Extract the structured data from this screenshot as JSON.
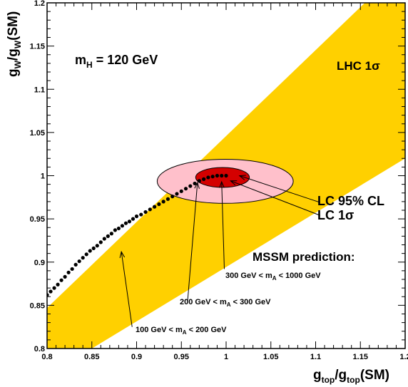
{
  "chart_data": {
    "type": "scatter",
    "x_range": [
      0.8,
      1.2
    ],
    "y_range": [
      0.8,
      1.2
    ],
    "x_ticks": [
      0.8,
      0.85,
      0.9,
      0.95,
      1,
      1.05,
      1.1,
      1.15,
      1.2
    ],
    "x_tick_labels": [
      "0.8",
      "0.85",
      "0.9",
      "0.95",
      "1",
      "1.05",
      "1.1",
      "1.15",
      "1.2"
    ],
    "y_ticks": [
      0.8,
      0.85,
      0.9,
      0.95,
      1,
      1.05,
      1.1,
      1.15,
      1.2
    ],
    "y_tick_labels": [
      "0.8",
      "0.85",
      "0.9",
      "0.95",
      "1",
      "1.05",
      "1.1",
      "1.15",
      "1.2"
    ],
    "xlabel": {
      "main": "g",
      "sub": "top",
      "mid": "/g",
      "sub2": "top",
      "tail": "(SM)"
    },
    "ylabel": {
      "main": "g",
      "sub": "W",
      "mid": "/g",
      "sub2": "W",
      "tail": "(SM)"
    },
    "lhc_band": {
      "label": "LHC 1σ",
      "color": "#FFD000",
      "polygon": [
        [
          0.85,
          0.8
        ],
        [
          1.2,
          1.02
        ],
        [
          1.2,
          1.2
        ],
        [
          1.155,
          1.2
        ],
        [
          0.8,
          0.847
        ],
        [
          0.8,
          0.8
        ]
      ]
    },
    "lc_95_ellipse": {
      "label": "LC 95% CL",
      "color": "#FFC0CB",
      "center": [
        0.999,
        0.9935
      ],
      "radius": [
        0.076,
        0.0255
      ]
    },
    "lc_1sigma_ellipse": {
      "label": "LC 1σ",
      "color": "#D40000",
      "center": [
        0.996,
        0.998
      ],
      "radius": [
        0.03,
        0.0115
      ]
    },
    "mssm_points": [
      [
        0.8,
        0.862
      ],
      [
        0.804,
        0.866
      ],
      [
        0.808,
        0.87
      ],
      [
        0.812,
        0.874
      ],
      [
        0.816,
        0.879
      ],
      [
        0.82,
        0.883
      ],
      [
        0.824,
        0.888
      ],
      [
        0.828,
        0.892
      ],
      [
        0.832,
        0.897
      ],
      [
        0.836,
        0.901
      ],
      [
        0.84,
        0.905
      ],
      [
        0.844,
        0.909
      ],
      [
        0.848,
        0.913
      ],
      [
        0.852,
        0.916
      ],
      [
        0.856,
        0.919
      ],
      [
        0.86,
        0.923
      ],
      [
        0.864,
        0.927
      ],
      [
        0.868,
        0.93
      ],
      [
        0.872,
        0.933
      ],
      [
        0.876,
        0.937
      ],
      [
        0.88,
        0.939
      ],
      [
        0.884,
        0.942
      ],
      [
        0.888,
        0.945
      ],
      [
        0.892,
        0.947
      ],
      [
        0.896,
        0.95
      ],
      [
        0.9,
        0.953
      ],
      [
        0.905,
        0.955
      ],
      [
        0.91,
        0.958
      ],
      [
        0.915,
        0.961
      ],
      [
        0.92,
        0.964
      ],
      [
        0.925,
        0.967
      ],
      [
        0.93,
        0.97
      ],
      [
        0.935,
        0.973
      ],
      [
        0.94,
        0.976
      ],
      [
        0.945,
        0.979
      ],
      [
        0.95,
        0.982
      ],
      [
        0.955,
        0.985
      ],
      [
        0.96,
        0.988
      ],
      [
        0.965,
        0.991
      ],
      [
        0.97,
        0.994
      ],
      [
        0.975,
        0.996
      ],
      [
        0.98,
        0.998
      ],
      [
        0.985,
        0.999
      ],
      [
        0.99,
        1.0
      ],
      [
        0.995,
        1.0
      ],
      [
        1.0,
        1.0
      ]
    ],
    "annotations": {
      "mh": {
        "main": "m",
        "sub": "H",
        "tail": " = 120 GeV"
      },
      "lhc": "LHC 1σ",
      "lc95": "LC 95% CL",
      "lc1s": "LC 1σ",
      "mssm": "MSSM prediction:",
      "r1": {
        "head": "100 GeV < m",
        "sub": "A",
        "tail": " < 200 GeV"
      },
      "r2": {
        "head": "200 GeV < m",
        "sub": "A",
        "tail": " < 300 GeV"
      },
      "r3": {
        "head": "300 GeV < m",
        "sub": "A",
        "tail": " < 1000 GeV"
      }
    },
    "arrows": [
      {
        "name": "arrow-100-200",
        "from": [
          0.895,
          0.825
        ],
        "to": [
          0.883,
          0.912
        ]
      },
      {
        "name": "arrow-200-300",
        "from": [
          0.957,
          0.855
        ],
        "to": [
          0.968,
          0.992
        ]
      },
      {
        "name": "arrow-300-1000",
        "from": [
          0.998,
          0.892
        ],
        "to": [
          0.995,
          0.993
        ]
      },
      {
        "name": "arrow-lc95",
        "from": [
          1.105,
          0.969
        ],
        "to": [
          1.015,
          1.0
        ]
      },
      {
        "name": "arrow-lc1sigma",
        "from": [
          1.105,
          0.954
        ],
        "to": [
          1.005,
          0.994
        ]
      }
    ],
    "grid": false
  }
}
